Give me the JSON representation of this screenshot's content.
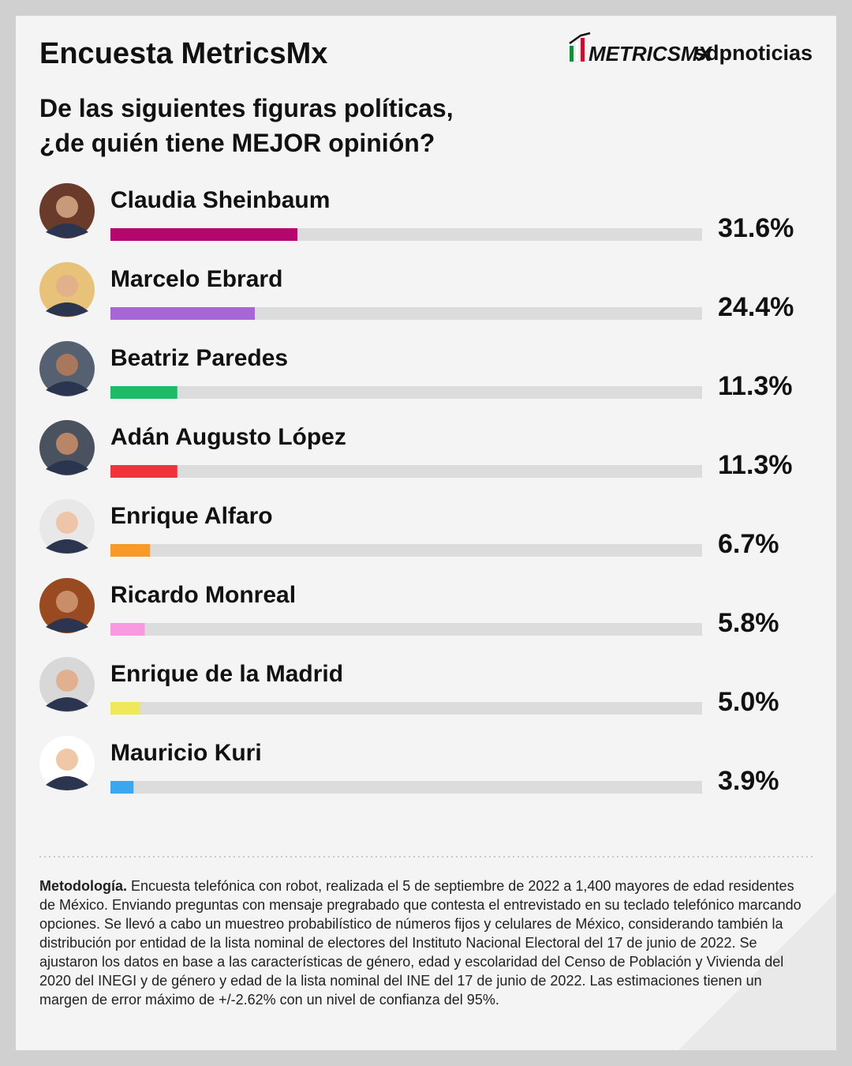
{
  "chart_data": {
    "type": "hbar",
    "title": "Encuesta MetricsMx",
    "logos": [
      "METRICSMX",
      "sdpnoticias"
    ],
    "subtitle": [
      "De las siguientes figuras políticas,",
      "¿de quién tiene MEJOR opinión?"
    ],
    "categories": [
      "Claudia Sheinbaum",
      "Marcelo Ebrard",
      "Beatriz Paredes",
      "Adán Augusto López",
      "Enrique Alfaro",
      "Ricardo Monreal",
      "Enrique de la Madrid",
      "Mauricio Kuri"
    ],
    "values": [
      31.6,
      24.4,
      11.3,
      11.3,
      6.7,
      5.8,
      5.0,
      3.9
    ],
    "value_labels": [
      "31.6%",
      "24.4%",
      "11.3%",
      "11.3%",
      "6.7%",
      "5.8%",
      "5.0%",
      "3.9%"
    ],
    "colors": [
      "#b5056e",
      "#a865d6",
      "#1dbb68",
      "#f0333b",
      "#f89a27",
      "#f99ae0",
      "#efe85b",
      "#3aa7ee"
    ],
    "track_color": "#dcdcdc",
    "xlim": [
      0,
      100
    ],
    "methodology": {
      "lead": "Metodología.",
      "text": "Encuesta telefónica con robot, realizada el 5 de septiembre de 2022 a 1,400 mayores de edad residentes de México. Enviando preguntas con mensaje pregrabado que contesta el entrevistado en su teclado telefónico marcando opciones. Se llevó a cabo un muestreo probabilístico de números fijos y celulares de México, considerando también la distribución por entidad de la lista nominal de electores del Instituto Nacional Electoral del 17 de junio de 2022. Se ajustaron los datos en base a las características de género, edad y escolaridad del Censo de Población y Vivienda del 2020 del INEGI y de género y edad de la lista nominal del INE del 17 de junio de 2022. Las estimaciones tienen un margen de error máximo de +/-2.62% con un nivel de confianza del 95%."
    }
  }
}
